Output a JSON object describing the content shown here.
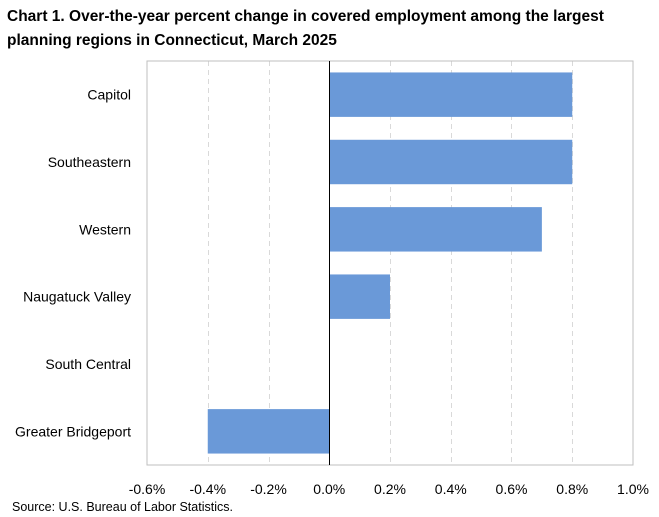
{
  "title": "Chart 1. Over-the-year percent change in covered employment among the largest planning regions in Connecticut, March 2025",
  "source": "Source: U.S. Bureau of Labor Statistics.",
  "chart_data": {
    "type": "bar",
    "orientation": "horizontal",
    "categories": [
      "Capitol",
      "Southeastern",
      "Western",
      "Naugatuck Valley",
      "South Central",
      "Greater Bridgeport"
    ],
    "values": [
      0.8,
      0.8,
      0.7,
      0.2,
      0.0,
      -0.4
    ],
    "xlim": [
      -0.6,
      1.0
    ],
    "xticks": [
      -0.6,
      -0.4,
      -0.2,
      0.0,
      0.2,
      0.4,
      0.6,
      0.8,
      1.0
    ],
    "xtick_labels": [
      "-0.6%",
      "-0.4%",
      "-0.2%",
      "0.0%",
      "0.2%",
      "0.4%",
      "0.6%",
      "0.8%",
      "1.0%"
    ],
    "grid": "vertical-dashed",
    "bar_color": "#6a99d8",
    "legend": "none"
  }
}
